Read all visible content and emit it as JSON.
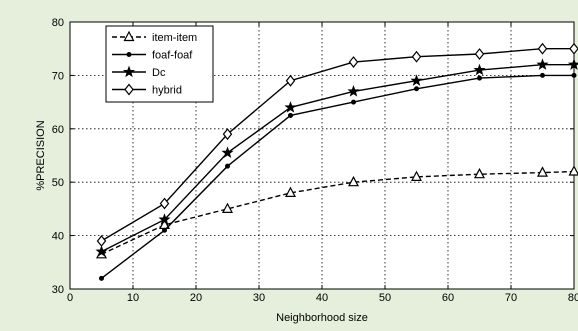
{
  "colors": {
    "background": "#e6efdc",
    "plot_background": "#ffffff",
    "axis": "#000000",
    "grid": "#000000",
    "series": "#000000"
  },
  "chart_data": {
    "type": "line",
    "title": "",
    "xlabel": "Neighborhood size",
    "ylabel": "%PRECISION",
    "xlim": [
      0,
      80
    ],
    "ylim": [
      30,
      80
    ],
    "xticks": [
      0,
      10,
      20,
      30,
      40,
      50,
      60,
      70,
      80
    ],
    "yticks": [
      30,
      40,
      50,
      60,
      70,
      80
    ],
    "grid": true,
    "grid_style": "dotted",
    "legend_position": "top-left",
    "series": [
      {
        "name": "item-item",
        "line_style": "dashed",
        "marker": "triangle",
        "x": [
          5,
          15,
          25,
          35,
          45,
          55,
          65,
          75,
          80
        ],
        "y": [
          36.5,
          42,
          45,
          48,
          50,
          51,
          51.5,
          51.8,
          52
        ]
      },
      {
        "name": "foaf-foaf",
        "line_style": "solid",
        "marker": "dot",
        "x": [
          5,
          15,
          25,
          35,
          45,
          55,
          65,
          75,
          80
        ],
        "y": [
          32,
          41,
          53,
          62.5,
          65,
          67.5,
          69.5,
          70,
          70
        ]
      },
      {
        "name": "Dc",
        "line_style": "solid",
        "marker": "star",
        "x": [
          5,
          15,
          25,
          35,
          45,
          55,
          65,
          75,
          80
        ],
        "y": [
          37,
          43,
          55.5,
          64,
          67,
          69,
          71,
          72,
          72
        ]
      },
      {
        "name": "hybrid",
        "line_style": "solid",
        "marker": "diamond",
        "x": [
          5,
          15,
          25,
          35,
          45,
          55,
          65,
          75,
          80
        ],
        "y": [
          39,
          46,
          59,
          69,
          72.5,
          73.5,
          74,
          75,
          75
        ]
      }
    ]
  }
}
